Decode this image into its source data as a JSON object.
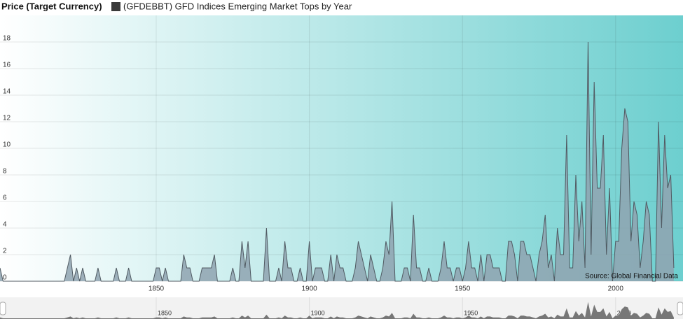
{
  "chart_data": {
    "type": "area",
    "title": "Price (Target Currency)",
    "source": "Source: Global Financial Data",
    "xlim": [
      1799,
      2022
    ],
    "xticks": [
      1850,
      1900,
      1950,
      2000
    ],
    "ylim": [
      0,
      20
    ],
    "yticks": [
      0,
      2,
      4,
      6,
      8,
      10,
      12,
      14,
      16,
      18
    ],
    "grid": true,
    "x": [
      1799,
      1800,
      1801,
      1802,
      1803,
      1804,
      1805,
      1806,
      1807,
      1808,
      1809,
      1810,
      1811,
      1812,
      1813,
      1814,
      1815,
      1816,
      1817,
      1818,
      1819,
      1820,
      1821,
      1822,
      1823,
      1824,
      1825,
      1826,
      1827,
      1828,
      1829,
      1830,
      1831,
      1832,
      1833,
      1834,
      1835,
      1836,
      1837,
      1838,
      1839,
      1840,
      1841,
      1842,
      1843,
      1844,
      1845,
      1846,
      1847,
      1848,
      1849,
      1850,
      1851,
      1852,
      1853,
      1854,
      1855,
      1856,
      1857,
      1858,
      1859,
      1860,
      1861,
      1862,
      1863,
      1864,
      1865,
      1866,
      1867,
      1868,
      1869,
      1870,
      1871,
      1872,
      1873,
      1874,
      1875,
      1876,
      1877,
      1878,
      1879,
      1880,
      1881,
      1882,
      1883,
      1884,
      1885,
      1886,
      1887,
      1888,
      1889,
      1890,
      1891,
      1892,
      1893,
      1894,
      1895,
      1896,
      1897,
      1898,
      1899,
      1900,
      1901,
      1902,
      1903,
      1904,
      1905,
      1906,
      1907,
      1908,
      1909,
      1910,
      1911,
      1912,
      1913,
      1914,
      1915,
      1916,
      1917,
      1918,
      1919,
      1920,
      1921,
      1922,
      1923,
      1924,
      1925,
      1926,
      1927,
      1928,
      1929,
      1930,
      1931,
      1932,
      1933,
      1934,
      1935,
      1936,
      1937,
      1938,
      1939,
      1940,
      1941,
      1942,
      1943,
      1944,
      1945,
      1946,
      1947,
      1948,
      1949,
      1950,
      1951,
      1952,
      1953,
      1954,
      1955,
      1956,
      1957,
      1958,
      1959,
      1960,
      1961,
      1962,
      1963,
      1964,
      1965,
      1966,
      1967,
      1968,
      1969,
      1970,
      1971,
      1972,
      1973,
      1974,
      1975,
      1976,
      1977,
      1978,
      1979,
      1980,
      1981,
      1982,
      1983,
      1984,
      1985,
      1986,
      1987,
      1988,
      1989,
      1990,
      1991,
      1992,
      1993,
      1994,
      1995,
      1996,
      1997,
      1998,
      1999,
      2000,
      2001,
      2002,
      2003,
      2004,
      2005,
      2006,
      2007,
      2008,
      2009,
      2010,
      2011,
      2012,
      2013,
      2014,
      2015,
      2016,
      2017,
      2018,
      2019
    ],
    "series": [
      {
        "name": "(GFDEBBT) GFD Indices Emerging Market Tops by Year",
        "color": "#3a3a3a",
        "fill": "#8fa3b0",
        "line": "#505a62",
        "values": [
          1,
          0,
          0,
          0,
          0,
          0,
          0,
          0,
          0,
          0,
          0,
          0,
          0,
          0,
          0,
          0,
          0,
          0,
          0,
          0,
          0,
          0,
          1,
          2,
          0,
          1,
          0,
          1,
          0,
          0,
          0,
          0,
          1,
          0,
          0,
          0,
          0,
          0,
          1,
          0,
          0,
          0,
          1,
          0,
          0,
          0,
          0,
          0,
          0,
          0,
          0,
          1,
          1,
          0,
          1,
          0,
          0,
          0,
          0,
          0,
          2,
          1,
          1,
          0,
          0,
          0,
          1,
          1,
          1,
          1,
          2,
          0,
          0,
          0,
          0,
          0,
          1,
          0,
          0,
          3,
          1,
          3,
          0,
          0,
          0,
          0,
          0,
          4,
          0,
          0,
          0,
          1,
          0,
          3,
          1,
          1,
          0,
          0,
          1,
          0,
          0,
          3,
          0,
          1,
          1,
          1,
          0,
          0,
          2,
          0,
          2,
          1,
          1,
          0,
          0,
          0,
          1,
          3,
          2,
          1,
          0,
          2,
          1,
          0,
          0,
          1,
          3,
          2,
          6,
          0,
          0,
          0,
          1,
          1,
          0,
          5,
          1,
          1,
          0,
          0,
          1,
          0,
          0,
          0,
          1,
          3,
          1,
          1,
          0,
          1,
          1,
          0,
          1,
          3,
          1,
          1,
          0,
          2,
          0,
          2,
          2,
          1,
          1,
          1,
          0,
          0,
          3,
          3,
          2,
          0,
          3,
          3,
          2,
          2,
          1,
          0,
          2,
          3,
          5,
          1,
          2,
          0,
          4,
          2,
          2,
          11,
          1,
          1,
          8,
          3,
          6,
          1,
          18,
          2,
          15,
          7,
          7,
          11,
          2,
          7,
          0,
          3,
          3,
          10,
          13,
          12,
          3,
          6,
          5,
          1,
          3,
          6,
          5,
          0,
          0,
          12,
          4,
          11,
          7,
          8,
          1
        ]
      }
    ]
  }
}
